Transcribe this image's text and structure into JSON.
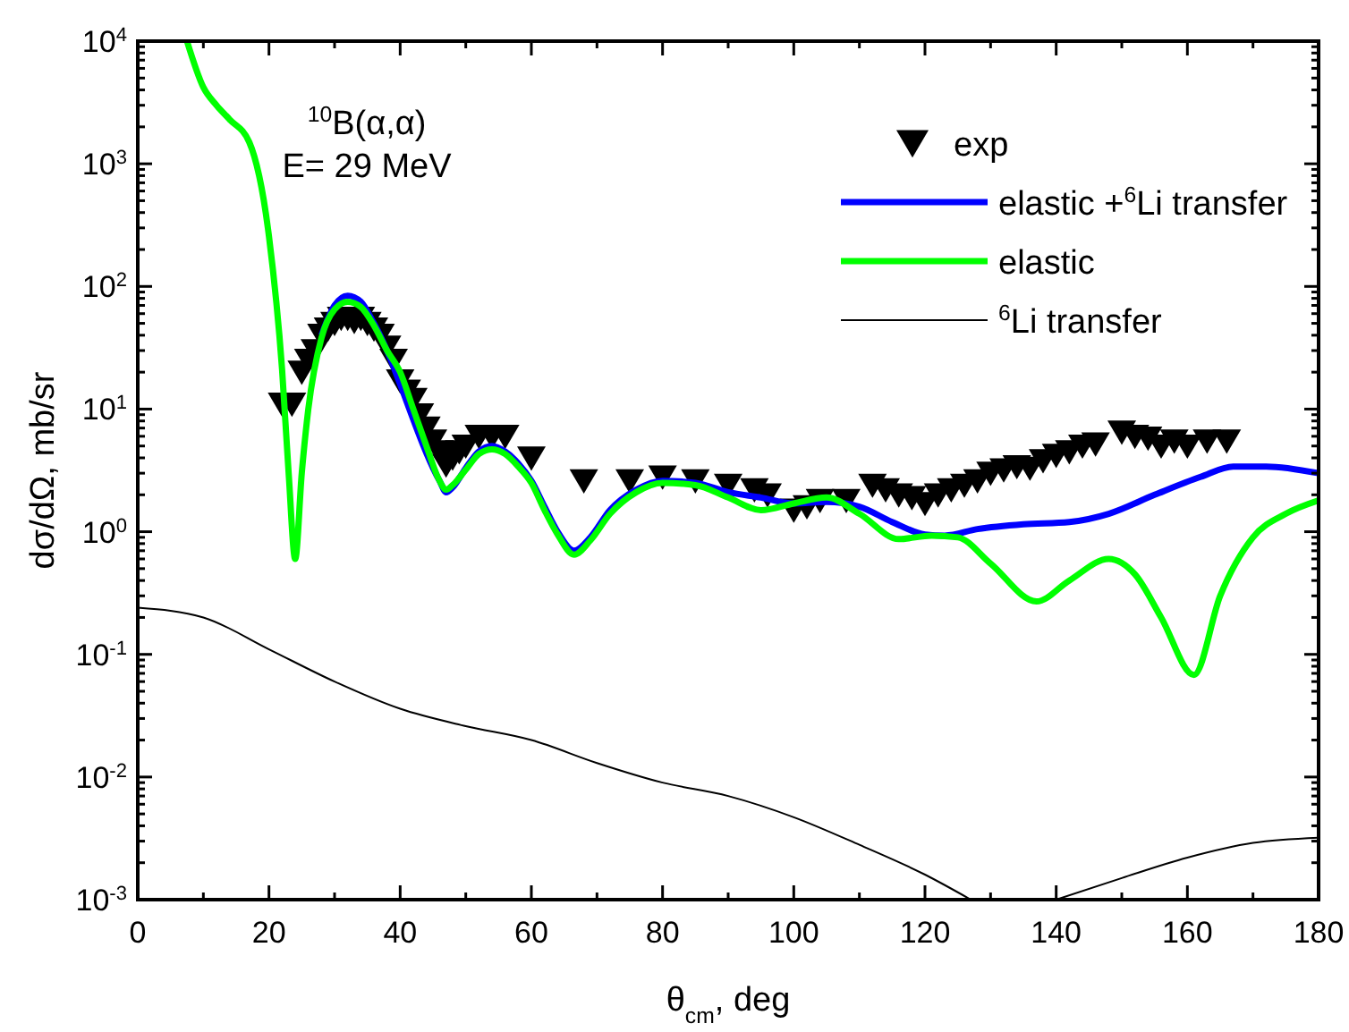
{
  "chart_data": {
    "type": "line",
    "xlabel": "θ$_{cm}$, deg",
    "ylabel": "dσ/dΩ, mb/sr",
    "log": "y",
    "xlim": [
      0,
      180
    ],
    "xticks": [
      0,
      20,
      40,
      60,
      80,
      100,
      120,
      140,
      160,
      180
    ],
    "ylim": [
      0.001,
      10000
    ],
    "yticks": [
      {
        "value": 0.001,
        "label": "10$^{-3}$"
      },
      {
        "value": 0.01,
        "label": "10$^{-2}$"
      },
      {
        "value": 0.1,
        "label": "10$^{-1}$"
      },
      {
        "value": 1,
        "label": "10$^{0}$"
      },
      {
        "value": 10,
        "label": "10$^{1}$"
      },
      {
        "value": 100,
        "label": "10$^{2}$"
      },
      {
        "value": 1000,
        "label": "10$^{3}$"
      },
      {
        "value": 10000,
        "label": "10$^{4}$"
      }
    ],
    "grid": false,
    "legend": "top right",
    "annotations": [
      "$^{10}$B(α,α)",
      "E= 29 MeV"
    ],
    "series": [
      {
        "name": "exp",
        "type": "scatter",
        "marker": "triangle",
        "color": "#000000",
        "x": [
          22,
          23.5,
          25,
          26,
          27,
          28,
          29,
          30,
          31,
          32,
          33,
          34,
          35,
          36,
          37,
          38,
          39,
          40,
          41,
          42,
          43,
          44,
          45,
          46,
          47,
          48,
          49,
          50,
          52,
          54,
          56,
          60,
          68,
          75,
          80,
          85,
          90,
          94,
          96,
          100,
          102,
          104,
          108,
          112,
          114,
          116,
          118,
          120,
          122,
          124,
          126,
          128,
          130,
          132,
          134,
          136,
          138,
          140,
          142,
          144,
          146,
          150,
          152,
          154,
          156,
          158,
          160,
          163,
          166
        ],
        "values": [
          11,
          11,
          20,
          25,
          30,
          40,
          45,
          50,
          55,
          55,
          52,
          55,
          50,
          45,
          40,
          32,
          25,
          17,
          14,
          12,
          9,
          7,
          5.5,
          4.5,
          3.5,
          4,
          4.5,
          5,
          6,
          6,
          6,
          4,
          2.6,
          2.6,
          2.8,
          2.6,
          2.4,
          2.2,
          2,
          1.5,
          1.6,
          1.8,
          1.8,
          2.4,
          2.2,
          2,
          1.9,
          1.7,
          2,
          2.2,
          2.4,
          2.6,
          3,
          3.2,
          3.4,
          3.3,
          3.8,
          4.2,
          4.5,
          5,
          5.2,
          6.5,
          6,
          5.8,
          5,
          5.5,
          5,
          5.5,
          5.5
        ]
      },
      {
        "name": "elastic +$^{6}$Li transfer",
        "color": "#0000ff",
        "line_style": "solid",
        "x": [
          28,
          30,
          32,
          34,
          36,
          46,
          47,
          48,
          50,
          52,
          54,
          56,
          58,
          60,
          62,
          64,
          66.5,
          69,
          72,
          76,
          80,
          85,
          90,
          95,
          100,
          105,
          110,
          115,
          120,
          123,
          128,
          135,
          142,
          148,
          155,
          162,
          167,
          172,
          180
        ],
        "values": [
          40,
          70,
          84,
          75,
          50,
          2.6,
          2.1,
          2.3,
          3.3,
          4.5,
          5,
          4.5,
          3.6,
          2.6,
          1.6,
          1,
          0.7,
          0.9,
          1.5,
          2.2,
          2.6,
          2.5,
          2.1,
          1.9,
          1.7,
          1.75,
          1.6,
          1.2,
          0.95,
          0.93,
          1.05,
          1.15,
          1.2,
          1.4,
          2,
          2.8,
          3.4,
          3.4,
          3
        ]
      },
      {
        "name": "elastic",
        "color": "#00ff00",
        "line_style": "solid",
        "x": [
          7.5,
          10,
          12,
          14,
          17,
          20,
          22,
          23,
          24,
          25,
          26,
          28,
          30,
          32,
          34,
          36,
          38,
          40,
          42,
          44,
          46,
          47,
          48,
          50,
          52,
          54,
          56,
          58,
          60,
          62,
          64,
          66.5,
          69,
          72,
          76,
          80,
          85,
          90,
          95,
          100,
          105,
          110,
          116,
          121,
          125,
          130,
          137,
          142,
          148,
          152,
          156,
          161,
          165,
          170,
          175,
          180
        ],
        "values": [
          10000,
          4200,
          3000,
          2300,
          1500,
          256,
          21,
          3,
          0.6,
          3,
          10,
          38,
          65,
          75,
          68,
          48,
          30,
          20,
          10,
          5,
          2.6,
          2.2,
          2.4,
          3.2,
          4.3,
          4.7,
          4.3,
          3.4,
          2.5,
          1.5,
          0.95,
          0.65,
          0.85,
          1.4,
          2.1,
          2.5,
          2.4,
          1.9,
          1.5,
          1.7,
          1.9,
          1.4,
          0.87,
          0.93,
          0.9,
          0.55,
          0.27,
          0.4,
          0.6,
          0.45,
          0.2,
          0.068,
          0.3,
          0.9,
          1.4,
          1.8
        ]
      },
      {
        "name": "$^{6}$Li transfer",
        "color": "#000000",
        "line_style": "solid",
        "x": [
          0,
          10,
          20,
          30,
          40,
          50,
          60,
          70,
          80,
          90,
          100,
          110,
          120,
          127,
          133,
          140,
          150,
          160,
          170,
          180
        ],
        "values": [
          0.24,
          0.2,
          0.11,
          0.06,
          0.036,
          0.026,
          0.02,
          0.013,
          0.009,
          0.007,
          0.0047,
          0.0028,
          0.0016,
          0.001,
          null,
          0.001,
          0.0015,
          0.0022,
          0.0029,
          0.0032
        ]
      }
    ]
  }
}
